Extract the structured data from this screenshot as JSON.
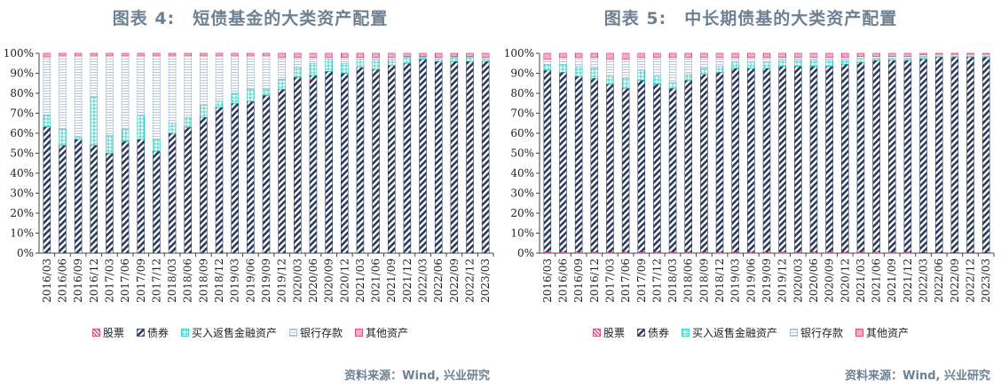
{
  "colors": {
    "stock": "#d6336c",
    "bond": "#2d3a5c",
    "repo": "#1fc8c0",
    "deposit": "#9fb4cc",
    "other": "#d6336c",
    "title": "#6e8193"
  },
  "legend_labels": [
    "股票",
    "债券",
    "买入返售金融资产",
    "银行存款",
    "其他资产"
  ],
  "chart_data": [
    {
      "type": "bar",
      "stacked": true,
      "title": "图表 4:　短债基金的大类资产配置",
      "source": "资料来源：Wind, 兴业研究",
      "ylim": [
        0,
        100
      ],
      "yticks": [
        "0%",
        "10%",
        "20%",
        "30%",
        "40%",
        "50%",
        "60%",
        "70%",
        "80%",
        "90%",
        "100%"
      ],
      "categories": [
        "2016/03",
        "2016/06",
        "2016/09",
        "2016/12",
        "2017/03",
        "2017/06",
        "2017/09",
        "2017/12",
        "2018/03",
        "2018/06",
        "2018/09",
        "2018/12",
        "2019/03",
        "2019/06",
        "2019/09",
        "2019/12",
        "2020/03",
        "2020/06",
        "2020/09",
        "2020/12",
        "2021/03",
        "2021/06",
        "2021/09",
        "2021/12",
        "2022/03",
        "2022/06",
        "2022/09",
        "2022/12",
        "2023/03"
      ],
      "series": [
        {
          "name": "股票",
          "values": [
            0.2,
            0,
            0,
            0,
            0,
            0,
            0,
            0,
            0,
            0,
            0,
            0,
            0,
            0,
            0,
            0,
            0,
            0,
            0,
            0,
            0,
            0,
            0,
            0,
            0,
            0,
            0,
            0,
            0
          ]
        },
        {
          "name": "债券",
          "values": [
            63,
            54,
            57,
            54,
            50,
            56,
            57,
            51,
            60,
            63,
            68,
            73,
            75,
            76,
            79,
            82,
            88,
            89,
            91,
            90,
            93,
            92,
            94,
            95,
            97,
            96,
            96,
            96,
            96
          ]
        },
        {
          "name": "买入返售金融资产",
          "values": [
            6,
            8,
            1,
            24,
            9,
            6,
            12,
            6,
            5,
            5,
            6,
            3,
            5,
            6,
            3,
            5,
            5,
            6,
            6,
            5,
            4,
            5,
            3,
            3,
            1,
            1,
            2,
            2,
            1
          ]
        },
        {
          "name": "银行存款",
          "values": [
            29,
            37,
            41,
            21,
            40,
            37,
            30,
            42,
            34,
            31,
            25,
            23,
            19,
            17,
            17,
            11,
            5,
            3,
            1,
            3,
            1,
            1,
            1,
            0.5,
            0.5,
            1,
            0.5,
            0.5,
            1
          ]
        },
        {
          "name": "其他资产",
          "values": [
            1.8,
            1,
            1,
            1,
            1,
            1,
            1,
            1,
            1,
            1,
            1,
            1,
            1,
            1,
            1,
            2,
            2,
            2,
            2,
            2,
            2,
            2,
            2,
            1.5,
            1.5,
            2,
            1.5,
            1.5,
            2
          ]
        }
      ]
    },
    {
      "type": "bar",
      "stacked": true,
      "title": "图表 5:　中长期债基的大类资产配置",
      "source": "资料来源：Wind, 兴业研究",
      "ylim": [
        0,
        100
      ],
      "yticks": [
        "0%",
        "10%",
        "20%",
        "30%",
        "40%",
        "50%",
        "60%",
        "70%",
        "80%",
        "90%",
        "100%"
      ],
      "categories": [
        "2016/03",
        "2016/06",
        "2016/09",
        "2016/12",
        "2017/03",
        "2017/06",
        "2017/09",
        "2017/12",
        "2018/03",
        "2018/06",
        "2018/09",
        "2018/12",
        "2019/03",
        "2019/06",
        "2019/09",
        "2019/12",
        "2020/03",
        "2020/06",
        "2020/09",
        "2020/12",
        "2021/03",
        "2021/06",
        "2021/09",
        "2021/12",
        "2022/03",
        "2022/06",
        "2022/09",
        "2022/12",
        "2023/03"
      ],
      "series": [
        {
          "name": "股票",
          "values": [
            0.5,
            0.5,
            0.5,
            0.5,
            0.5,
            0.5,
            0.5,
            0.5,
            0.5,
            0.5,
            0.5,
            0.5,
            0.5,
            0.5,
            0.5,
            0.5,
            0.5,
            0.5,
            0.5,
            0.5,
            0.5,
            0.5,
            0.5,
            0.5,
            0.2,
            0.2,
            0.2,
            0.2,
            0.2
          ]
        },
        {
          "name": "债券",
          "values": [
            91,
            90,
            88,
            87,
            84,
            82,
            86,
            84,
            82,
            86,
            89,
            90,
            92,
            92,
            92,
            93,
            93,
            93,
            93,
            94,
            95,
            96,
            96,
            96,
            97,
            98,
            98,
            98,
            98
          ]
        },
        {
          "name": "买入返售金融资产",
          "values": [
            3,
            4,
            5,
            5,
            4,
            5,
            5,
            4,
            3,
            3,
            3,
            3,
            3,
            3,
            3,
            3,
            3,
            3,
            3,
            2,
            2,
            1,
            1,
            1,
            1,
            0.5,
            0.5,
            0.5,
            0.5
          ]
        },
        {
          "name": "银行存款",
          "values": [
            2.5,
            3.5,
            4.5,
            5.5,
            8.5,
            9.5,
            6.5,
            9.5,
            12.5,
            8.5,
            5.5,
            4.5,
            2.5,
            2.5,
            2.5,
            1.5,
            1.5,
            1.5,
            1.5,
            1.5,
            1,
            1,
            1,
            1,
            1,
            0.8,
            0.8,
            0.8,
            0.8
          ]
        },
        {
          "name": "其他资产",
          "values": [
            3,
            2,
            2,
            2,
            3,
            3,
            2,
            2,
            2,
            2,
            2,
            2,
            2,
            2,
            2,
            2,
            2,
            2,
            2,
            2,
            1.5,
            1.5,
            1.5,
            1.5,
            0.8,
            0.5,
            0.5,
            0.5,
            0.5
          ]
        }
      ]
    }
  ]
}
